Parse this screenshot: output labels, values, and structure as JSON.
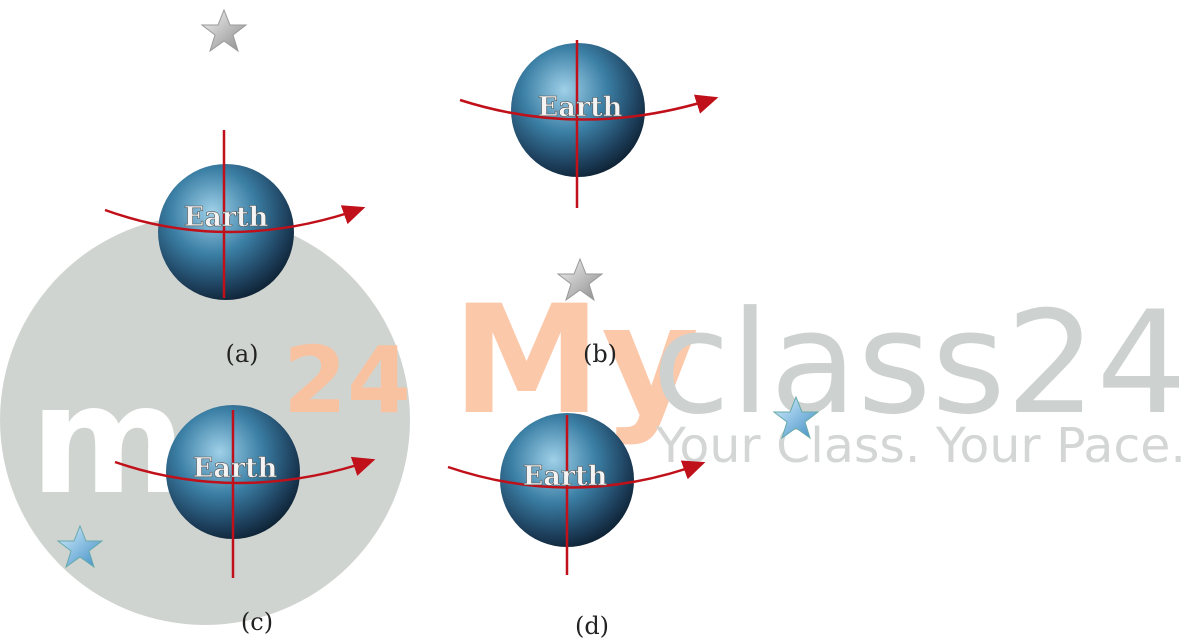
{
  "panels": [
    {
      "label": "(a)",
      "earth": "Earth"
    },
    {
      "label": "(b)",
      "earth": "Earth"
    },
    {
      "label": "(c)",
      "earth": "Earth"
    },
    {
      "label": "(d)",
      "earth": "Earth"
    }
  ],
  "watermark": {
    "logo": "mc",
    "logo_number": "24",
    "brand_first": "My",
    "brand_rest": "class24",
    "tagline": "Your Class. Your Pace."
  }
}
